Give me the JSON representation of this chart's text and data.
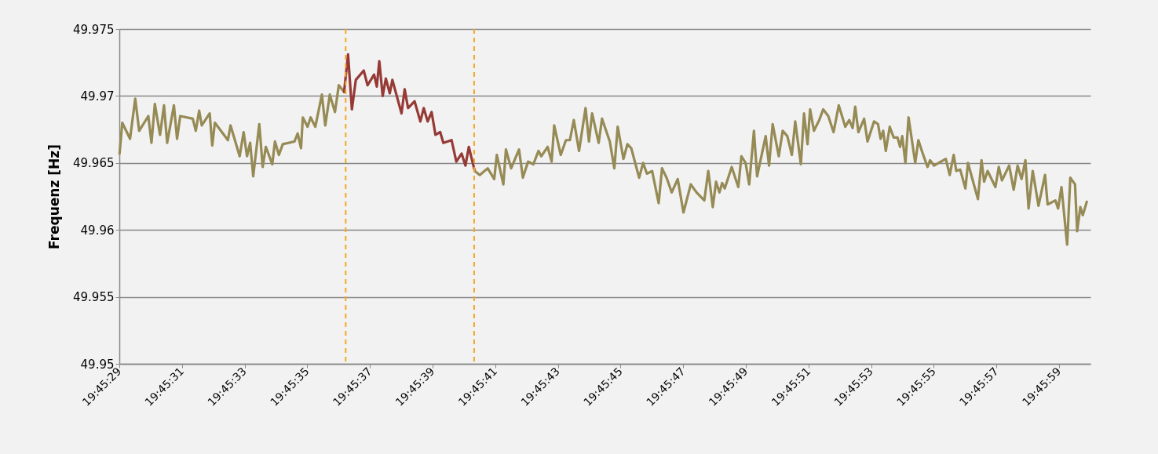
{
  "chart_data": {
    "type": "line",
    "ylabel": "Frequenz [Hz]",
    "grid": "y",
    "line_style": "solid",
    "marker": "none",
    "xlim": [
      19.758056,
      19.766667
    ],
    "xticks": [
      {
        "value": 19.758056,
        "label": "19:45:29"
      },
      {
        "value": 19.758611,
        "label": "19:45:31"
      },
      {
        "value": 19.759167,
        "label": "19:45:33"
      },
      {
        "value": 19.759722,
        "label": "19:45:35"
      },
      {
        "value": 19.760278,
        "label": "19:45:37"
      },
      {
        "value": 19.760833,
        "label": "19:45:39"
      },
      {
        "value": 19.761389,
        "label": "19:45:41"
      },
      {
        "value": 19.761944,
        "label": "19:45:43"
      },
      {
        "value": 19.7625,
        "label": "19:45:45"
      },
      {
        "value": 19.763056,
        "label": "19:45:47"
      },
      {
        "value": 19.763611,
        "label": "19:45:49"
      },
      {
        "value": 19.764167,
        "label": "19:45:51"
      },
      {
        "value": 19.764722,
        "label": "19:45:53"
      },
      {
        "value": 19.765278,
        "label": "19:45:55"
      },
      {
        "value": 19.765833,
        "label": "19:45:57"
      },
      {
        "value": 19.766389,
        "label": "19:45:59"
      }
    ],
    "ylim": [
      49.95,
      49.975
    ],
    "yticks": [
      49.95,
      49.955,
      49.96,
      49.965,
      49.97,
      49.975
    ],
    "ref_lines": [
      {
        "axis": "x",
        "value": 19.760063,
        "label": null,
        "color": "#f5a623",
        "line_style": "dashed"
      },
      {
        "axis": "x",
        "value": 19.761202,
        "label": null,
        "color": "#f5a623",
        "line_style": "dashed"
      }
    ],
    "series": [
      {
        "color": "#968a55",
        "x": [
          19.758058,
          19.758082,
          19.758151,
          19.758197,
          19.758232,
          19.758313,
          19.758341,
          19.758371,
          19.758417,
          19.758452,
          19.75848,
          19.75854,
          19.758568,
          19.758596,
          19.758707,
          19.758734,
          19.758764,
          19.758787,
          19.758857,
          19.75888,
          19.758903,
          19.759019,
          19.759042,
          19.759123,
          19.759158,
          19.759188,
          19.759216,
          19.759243,
          19.759297,
          19.759327,
          19.759355,
          19.759412,
          19.759436,
          19.759471,
          19.759505,
          19.759609,
          19.759637,
          19.759667,
          19.759683,
          19.759725,
          19.759752,
          19.759794,
          19.759852,
          19.759882,
          19.759922,
          19.759968,
          19.760002,
          19.760049
        ],
        "values": [
          49.9657,
          49.968,
          49.9668,
          49.9698,
          49.9674,
          49.9685,
          49.9665,
          49.9694,
          49.9671,
          49.9693,
          49.9665,
          49.9693,
          49.9668,
          49.9685,
          49.9683,
          49.9674,
          49.9689,
          49.9678,
          49.9687,
          49.9663,
          49.968,
          49.9667,
          49.9678,
          49.9655,
          49.9673,
          49.9655,
          49.9665,
          49.964,
          49.9679,
          49.9647,
          49.9662,
          49.9649,
          49.9666,
          49.9656,
          49.9664,
          49.9666,
          49.9672,
          49.9661,
          49.9684,
          49.9677,
          49.9684,
          49.9677,
          49.9701,
          49.9678,
          49.9701,
          49.9688,
          49.9708,
          49.9703
        ]
      },
      {
        "color": "#963a36",
        "x": [
          19.760049,
          19.760084,
          19.760118,
          19.760153,
          19.760223,
          19.760257,
          19.760315,
          19.760339,
          19.760361,
          19.760391,
          19.760419,
          19.760454,
          19.760477,
          19.760558,
          19.760586,
          19.760616,
          19.760674,
          19.760725,
          19.760755,
          19.76079,
          19.760825,
          19.760859,
          19.760901,
          19.760929,
          19.761002,
          19.761044,
          19.761091,
          19.761125,
          19.761155,
          19.761207
        ],
        "values": [
          49.9703,
          49.9731,
          49.969,
          49.9712,
          49.9719,
          49.9708,
          49.9716,
          49.9707,
          49.9726,
          49.97,
          49.9713,
          49.9702,
          49.9712,
          49.9687,
          49.9705,
          49.9691,
          49.9696,
          49.9681,
          49.9691,
          49.9681,
          49.9688,
          49.9671,
          49.9673,
          49.9665,
          49.9667,
          49.9651,
          49.9657,
          49.9648,
          49.9662,
          49.9644
        ]
      },
      {
        "color": "#968a55",
        "x": [
          19.761207,
          19.761252,
          19.761322,
          19.76138,
          19.761403,
          19.761461,
          19.761484,
          19.76153,
          19.7616,
          19.761634,
          19.761681,
          19.761727,
          19.761773,
          19.761797,
          19.761854,
          19.761889,
          19.761912,
          19.76197,
          19.762016,
          19.762051,
          19.762086,
          19.762132,
          19.76219,
          19.76222,
          19.762248,
          19.762306,
          19.762336,
          19.762405,
          19.762445,
          19.762475,
          19.762526,
          19.762561,
          19.762595,
          19.762665,
          19.7627,
          19.762734,
          19.76278,
          19.762838,
          19.762868,
          19.762908,
          19.762954,
          19.763007,
          19.763058,
          19.763123,
          19.763174,
          19.763243,
          19.763278,
          19.763318,
          19.763347,
          19.763377,
          19.763401,
          19.763424,
          19.763486,
          19.763544,
          19.763572,
          19.763609,
          19.763641,
          19.763683,
          19.763711,
          19.763787,
          19.763817,
          19.763849,
          19.763903,
          19.763938,
          19.763979,
          19.764019,
          19.764049,
          19.764099,
          19.764127,
          19.764158,
          19.764181,
          19.764215,
          19.764262,
          19.764297,
          19.764342,
          19.764389,
          19.764435,
          19.764493,
          19.764528,
          19.764558,
          19.764581,
          19.764609,
          19.76466,
          19.76469,
          19.764748,
          19.764783,
          19.764806,
          19.764829,
          19.764852,
          19.764887,
          19.764922,
          19.764956,
          19.764979,
          19.764998,
          19.765026,
          19.765054,
          19.765113,
          19.765141,
          19.765176,
          19.765222,
          19.765245,
          19.76528,
          19.765384,
          19.765419,
          19.765454,
          19.765477,
          19.765512,
          19.765558,
          19.765581,
          19.765623,
          19.765669,
          19.765701,
          19.765724,
          19.765755,
          19.765824,
          19.765854,
          19.765882,
          19.765946,
          19.765986,
          19.766021,
          19.766056,
          19.76609,
          19.766118,
          19.766155,
          19.766206,
          19.766264,
          19.766287,
          19.766356,
          19.76638,
          19.76641,
          19.76646,
          19.766488,
          19.76653,
          19.766549,
          19.766577,
          19.766599,
          19.766634
        ],
        "values": [
          49.9644,
          49.9641,
          49.9646,
          49.9638,
          49.9656,
          49.9634,
          49.966,
          49.9646,
          49.966,
          49.9639,
          49.9651,
          49.9649,
          49.9659,
          49.9655,
          49.9662,
          49.9651,
          49.9678,
          49.9656,
          49.9667,
          49.9667,
          49.9682,
          49.9659,
          49.9691,
          49.9666,
          49.9687,
          49.9665,
          49.9683,
          49.9666,
          49.9646,
          49.9677,
          49.9653,
          49.9664,
          49.9661,
          49.9639,
          49.965,
          49.9642,
          49.9644,
          49.962,
          49.9646,
          49.9639,
          49.9628,
          49.9638,
          49.9613,
          49.9634,
          49.9628,
          49.9622,
          49.9644,
          49.9617,
          49.9636,
          49.9628,
          49.9635,
          49.9631,
          49.9647,
          49.9632,
          49.9655,
          49.965,
          49.9634,
          49.9674,
          49.964,
          49.967,
          49.9648,
          49.9679,
          49.9655,
          49.9674,
          49.967,
          49.9656,
          49.9681,
          49.9649,
          49.9687,
          49.9664,
          49.969,
          49.9674,
          49.9682,
          49.969,
          49.9685,
          49.9673,
          49.9693,
          49.9677,
          49.9682,
          49.9676,
          49.9692,
          49.9673,
          49.9683,
          49.9666,
          49.9681,
          49.9679,
          49.9668,
          49.9674,
          49.9659,
          49.9677,
          49.9669,
          49.9669,
          49.9662,
          49.967,
          49.965,
          49.9684,
          49.965,
          49.9667,
          49.9658,
          49.9647,
          49.9652,
          49.9648,
          49.9653,
          49.9641,
          49.9656,
          49.9644,
          49.9645,
          49.9631,
          49.965,
          49.9637,
          49.9623,
          49.9652,
          49.9636,
          49.9644,
          49.9632,
          49.9647,
          49.9637,
          49.9648,
          49.963,
          49.9648,
          49.9638,
          49.9652,
          49.9616,
          49.9644,
          49.9618,
          49.9641,
          49.9619,
          49.9622,
          49.9616,
          49.9632,
          49.9589,
          49.9639,
          49.9634,
          49.9599,
          49.9617,
          49.9611,
          49.9621
        ]
      }
    ]
  }
}
